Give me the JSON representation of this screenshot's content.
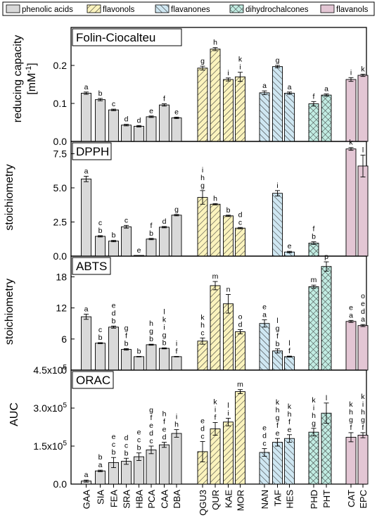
{
  "legend": [
    {
      "label": "phenolic acids",
      "pattern": "solid",
      "color": "#d9d9d9"
    },
    {
      "label": "flavonols",
      "pattern": "diag_up",
      "color": "#fbf3bd"
    },
    {
      "label": "flavanones",
      "pattern": "diag_down",
      "color": "#cfe7f2"
    },
    {
      "label": "dihydrochalcones",
      "pattern": "cross",
      "color": "#c1ece2"
    },
    {
      "label": "flavanols",
      "pattern": "solid",
      "color": "#e3c6d4"
    }
  ],
  "colors": {
    "phenolic": "#d9d9d9",
    "flavonol": "#fbf3bd",
    "flavanone": "#cfe7f2",
    "dihydro": "#c1ece2",
    "flavanol": "#e3c6d4"
  },
  "chart_data": {
    "type": "bar",
    "categories": [
      "GAA",
      "SIA",
      "FEA",
      "SRA",
      "HBA",
      "PCA",
      "CAA",
      "DBA",
      "QGU3",
      "QUR",
      "KAE",
      "MOR",
      "NAN",
      "TAF",
      "HES",
      "PHD",
      "PHT",
      "CAT",
      "EPC"
    ],
    "groups": [
      "phenolic",
      "phenolic",
      "phenolic",
      "phenolic",
      "phenolic",
      "phenolic",
      "phenolic",
      "phenolic",
      "flavonol",
      "flavonol",
      "flavonol",
      "flavonol",
      "flavanone",
      "flavanone",
      "flavanone",
      "dihydro",
      "dihydro",
      "flavanol",
      "flavanol"
    ],
    "panels": [
      {
        "title": "Folin-Ciocalteu",
        "ylabel": "reducing capacity",
        "ylabel2": "[mM",
        "ylabel_sup": "-1",
        "ylabel3": "]",
        "ylim": [
          0,
          0.3
        ],
        "yticks": [
          "0.0",
          "0.1",
          "0.2"
        ],
        "ytick_values": [
          0,
          0.1,
          0.2
        ],
        "values": [
          0.127,
          0.11,
          0.083,
          0.043,
          0.04,
          0.065,
          0.096,
          0.062,
          0.193,
          0.243,
          0.163,
          0.17,
          0.128,
          0.197,
          0.127,
          0.099,
          0.122,
          0.163,
          0.174
        ],
        "errors": [
          0.003,
          0.003,
          0.002,
          0.002,
          0.002,
          0.002,
          0.003,
          0.002,
          0.005,
          0.004,
          0.004,
          0.012,
          0.005,
          0.003,
          0.003,
          0.006,
          0.003,
          0.005,
          0.003
        ],
        "labels": [
          [
            "a"
          ],
          [
            "b"
          ],
          [
            "c"
          ],
          [
            "d"
          ],
          [
            "d"
          ],
          [
            "e"
          ],
          [
            "f"
          ],
          [
            "e"
          ],
          [
            "g"
          ],
          [
            "h"
          ],
          [
            "i"
          ],
          [
            "k",
            "i"
          ],
          [
            "a"
          ],
          [
            "g"
          ],
          [
            "a"
          ],
          [
            "f"
          ],
          [
            "a"
          ],
          [
            "i"
          ],
          [
            "k"
          ]
        ]
      },
      {
        "title": "DPPH",
        "ylabel": "stoichiometry",
        "ylim": [
          0,
          8.4
        ],
        "yticks": [
          "0.0",
          "2.5",
          "5.0",
          "7.5"
        ],
        "ytick_values": [
          0,
          2.5,
          5,
          7.5
        ],
        "values": [
          5.65,
          1.45,
          1.1,
          2.15,
          0.05,
          1.25,
          2.12,
          3.0,
          4.3,
          3.8,
          2.95,
          2.05,
          null,
          4.6,
          0.3,
          0.95,
          null,
          7.85,
          6.6
        ],
        "errors": [
          0.2,
          0.05,
          0.05,
          0.1,
          0.0,
          0.05,
          0.05,
          0.05,
          0.5,
          0.05,
          0.05,
          0.05,
          null,
          0.2,
          0.05,
          0.1,
          null,
          0.1,
          0.8
        ],
        "labels": [
          [
            "a"
          ],
          [
            "c",
            "b"
          ],
          [
            "b"
          ],
          [
            "c"
          ],
          [
            "e"
          ],
          [
            "f",
            "b"
          ],
          [
            "d"
          ],
          [
            "g"
          ],
          [
            "i",
            "h",
            "g"
          ],
          [
            "h"
          ],
          [
            "b"
          ],
          [
            "d",
            "c"
          ],
          [],
          [
            "i"
          ],
          [
            "e"
          ],
          [
            "f",
            "b"
          ],
          [],
          [
            "k"
          ],
          [
            "l"
          ]
        ]
      },
      {
        "title": "ABTS",
        "ylabel": "stoichiometry",
        "ylim": [
          0,
          22
        ],
        "yticks": [
          "0",
          "6",
          "12",
          "18"
        ],
        "ytick_values": [
          0,
          6,
          12,
          18
        ],
        "values": [
          10.3,
          5.2,
          8.3,
          4.0,
          2.6,
          4.9,
          4.2,
          2.6,
          5.6,
          16.3,
          12.8,
          7.4,
          9.0,
          3.7,
          2.6,
          16.1,
          20.0,
          9.4,
          8.6
        ],
        "errors": [
          0.5,
          0.1,
          0.2,
          0.15,
          0.05,
          0.1,
          0.1,
          0.05,
          0.6,
          0.8,
          1.8,
          0.4,
          0.7,
          0.4,
          0.1,
          0.3,
          0.9,
          0.2,
          0.2
        ],
        "labels": [
          [
            "a"
          ],
          [
            "c",
            "b"
          ],
          [
            "e",
            "d",
            "b"
          ],
          [
            "g",
            "f",
            "b"
          ],
          [
            "b"
          ],
          [
            "h",
            "g",
            "b"
          ],
          [
            "l",
            "k",
            "i",
            "g",
            "b"
          ],
          [
            "i",
            "f"
          ],
          [
            "k",
            "h",
            "c"
          ],
          [
            "m"
          ],
          [
            "n"
          ],
          [
            "o",
            "d"
          ],
          [
            "e",
            "a"
          ],
          [
            "l",
            "g",
            "f",
            "b"
          ],
          [
            "l",
            "f"
          ],
          [
            "m"
          ],
          [
            "p"
          ],
          [
            "e",
            "a"
          ],
          [
            "o",
            "e",
            "d",
            "a"
          ]
        ]
      },
      {
        "title": "ORAC",
        "ylabel": "AUC",
        "ylim": [
          0,
          450000
        ],
        "yticks": [
          "0.0",
          "1.5x10",
          "3.0x10",
          "4.5x10"
        ],
        "ytick_sups": [
          "",
          "5",
          "5",
          "5"
        ],
        "ytick_values": [
          0,
          150000,
          300000,
          450000
        ],
        "values": [
          12000,
          52000,
          85000,
          90000,
          108000,
          135000,
          155000,
          200000,
          128000,
          218000,
          245000,
          365000,
          125000,
          165000,
          180000,
          205000,
          280000,
          185000,
          193000
        ],
        "errors": [
          4000,
          3000,
          20000,
          12000,
          15000,
          15000,
          10000,
          15000,
          40000,
          25000,
          15000,
          8000,
          15000,
          15000,
          15000,
          15000,
          40000,
          18000,
          10000
        ],
        "labels": [
          [
            "a"
          ],
          [
            "b",
            "a"
          ],
          [
            "e",
            "c",
            "b"
          ],
          [
            "d",
            "c",
            "b"
          ],
          [
            "e",
            "c",
            "b"
          ],
          [
            "g",
            "f",
            "e",
            "d",
            "c"
          ],
          [
            "h",
            "f",
            "e",
            "d"
          ],
          [
            "i",
            "h"
          ],
          [
            "e",
            "d",
            "c"
          ],
          [
            "k",
            "i",
            "f"
          ],
          [
            "l",
            "i"
          ],
          [
            "m"
          ],
          [
            "e",
            "d",
            "c"
          ],
          [
            "k",
            "h",
            "g",
            "f",
            "e"
          ],
          [
            "k",
            "h",
            "f",
            "e"
          ],
          [
            "k",
            "i",
            "h",
            "g"
          ],
          [
            "l"
          ],
          [
            "k",
            "h",
            "g",
            "f"
          ],
          [
            "k",
            "i",
            "h",
            "g",
            "f"
          ]
        ]
      }
    ]
  }
}
